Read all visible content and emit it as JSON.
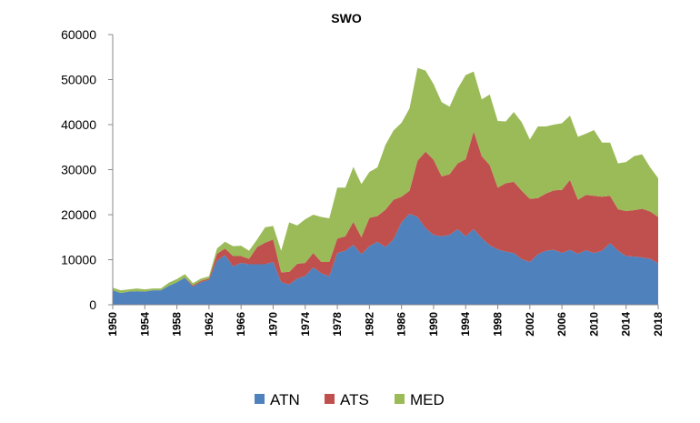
{
  "chart_data": {
    "type": "area",
    "stacked": true,
    "title": "SWO",
    "xlabel": "",
    "ylabel": "",
    "ylim": [
      0,
      60000
    ],
    "yticks": [
      "0",
      "10000",
      "20000",
      "30000",
      "40000",
      "50000",
      "60000"
    ],
    "xticks": [
      "1950",
      "1954",
      "1958",
      "1962",
      "1966",
      "1970",
      "1974",
      "1978",
      "1982",
      "1986",
      "1990",
      "1994",
      "1998",
      "2002",
      "2006",
      "2010",
      "2014",
      "2018"
    ],
    "legend_position": "bottom",
    "grid": false,
    "x": [
      1950,
      1951,
      1952,
      1953,
      1954,
      1955,
      1956,
      1957,
      1958,
      1959,
      1960,
      1961,
      1962,
      1963,
      1964,
      1965,
      1966,
      1967,
      1968,
      1969,
      1970,
      1971,
      1972,
      1973,
      1974,
      1975,
      1976,
      1977,
      1978,
      1979,
      1980,
      1981,
      1982,
      1983,
      1984,
      1985,
      1986,
      1987,
      1988,
      1989,
      1990,
      1991,
      1992,
      1993,
      1994,
      1995,
      1996,
      1997,
      1998,
      1999,
      2000,
      2001,
      2002,
      2003,
      2004,
      2005,
      2006,
      2007,
      2008,
      2009,
      2010,
      2011,
      2012,
      2013,
      2014,
      2015,
      2016,
      2017,
      2018
    ],
    "series": [
      {
        "name": "ATN",
        "color": "#4f81bd",
        "values": [
          3200,
          2600,
          2900,
          3000,
          2900,
          3200,
          3200,
          4200,
          5000,
          6000,
          4000,
          5000,
          5500,
          9800,
          11000,
          8500,
          9300,
          9000,
          9000,
          9000,
          9500,
          5000,
          4500,
          5800,
          6400,
          8300,
          7000,
          6300,
          11500,
          12000,
          13300,
          11200,
          13000,
          14000,
          12800,
          14500,
          18300,
          20200,
          19500,
          17000,
          15500,
          15200,
          15500,
          16800,
          15200,
          16800,
          14800,
          13200,
          12300,
          11800,
          11500,
          10100,
          9500,
          11200,
          12000,
          12200,
          11500,
          12200,
          11300,
          12100,
          11500,
          12000,
          13700,
          12000,
          10800,
          10700,
          10500,
          10200,
          9200
        ]
      },
      {
        "name": "ATS",
        "color": "#c0504d",
        "values": [
          0,
          0,
          0,
          0,
          0,
          0,
          0,
          0,
          0,
          0,
          300,
          300,
          300,
          1500,
          1500,
          2300,
          1500,
          1200,
          3800,
          4800,
          5000,
          2200,
          2800,
          3300,
          2900,
          3200,
          2500,
          3200,
          3200,
          3200,
          5100,
          3800,
          6300,
          5700,
          8300,
          8800,
          5700,
          5100,
          12500,
          17000,
          16700,
          13300,
          13500,
          14600,
          17100,
          21700,
          18200,
          17800,
          13700,
          15200,
          15800,
          15200,
          14000,
          12500,
          12700,
          13200,
          14000,
          15500,
          12000,
          12300,
          12700,
          12000,
          10500,
          9200,
          10000,
          10300,
          10800,
          10500,
          10300
        ]
      },
      {
        "name": "MED",
        "color": "#9bbb59",
        "values": [
          600,
          600,
          500,
          600,
          500,
          400,
          400,
          700,
          700,
          800,
          500,
          500,
          500,
          1200,
          1500,
          2200,
          2300,
          1800,
          1700,
          3400,
          3000,
          4800,
          11000,
          8500,
          9700,
          8500,
          10000,
          9700,
          11300,
          10800,
          12200,
          11800,
          10200,
          10800,
          14400,
          15400,
          16400,
          18300,
          20600,
          18000,
          16800,
          16500,
          15000,
          16600,
          18700,
          13300,
          12600,
          15700,
          14800,
          13700,
          15500,
          15200,
          13200,
          15900,
          14900,
          14600,
          14800,
          14300,
          14000,
          13600,
          14600,
          12000,
          11800,
          10200,
          10900,
          12000,
          12100,
          9800,
          8600
        ]
      }
    ]
  }
}
